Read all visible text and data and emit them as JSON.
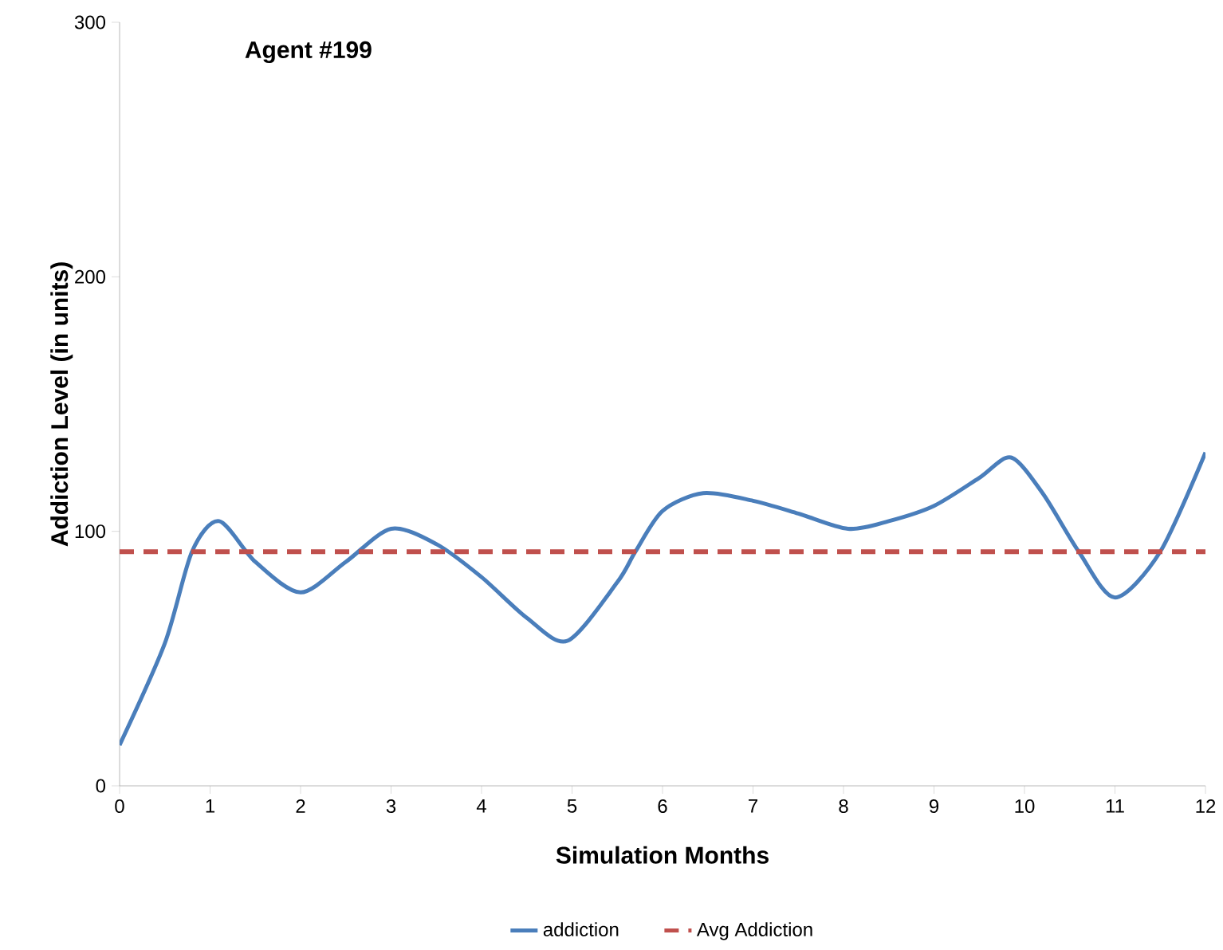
{
  "chart_data": {
    "type": "line",
    "title": "Agent #199",
    "xlabel": "Simulation Months",
    "ylabel": "Addiction Level (in units)",
    "series": [
      {
        "name": "addiction",
        "color": "#4a7ebb",
        "x": [
          0,
          0.5,
          0.8,
          1.1,
          1.5,
          2.0,
          2.5,
          3.0,
          3.5,
          4.0,
          4.5,
          4.95,
          5.5,
          5.7,
          6.0,
          6.45,
          7.0,
          7.5,
          8.05,
          8.5,
          9.0,
          9.5,
          9.85,
          10.2,
          10.6,
          11.0,
          11.5,
          12
        ],
        "values": [
          16,
          56,
          92,
          104,
          88,
          76,
          88,
          101,
          95,
          82,
          66,
          57,
          80,
          92,
          108,
          115,
          112,
          107,
          101,
          104,
          110,
          121,
          129,
          115,
          92,
          74,
          92,
          131
        ]
      }
    ],
    "ref_lines": [
      {
        "axis": "y",
        "value": 92,
        "label": "Avg Addiction",
        "color": "#c0504d",
        "line_style": "dashed"
      }
    ],
    "xlim": [
      0,
      12
    ],
    "ylim": [
      0,
      300
    ],
    "xticks": [
      0,
      1,
      2,
      3,
      4,
      5,
      6,
      7,
      8,
      9,
      10,
      11,
      12
    ],
    "yticks": [
      0,
      100,
      200,
      300
    ],
    "grid": false,
    "legend": "bottom",
    "marker": "none",
    "line_style": "solid"
  }
}
